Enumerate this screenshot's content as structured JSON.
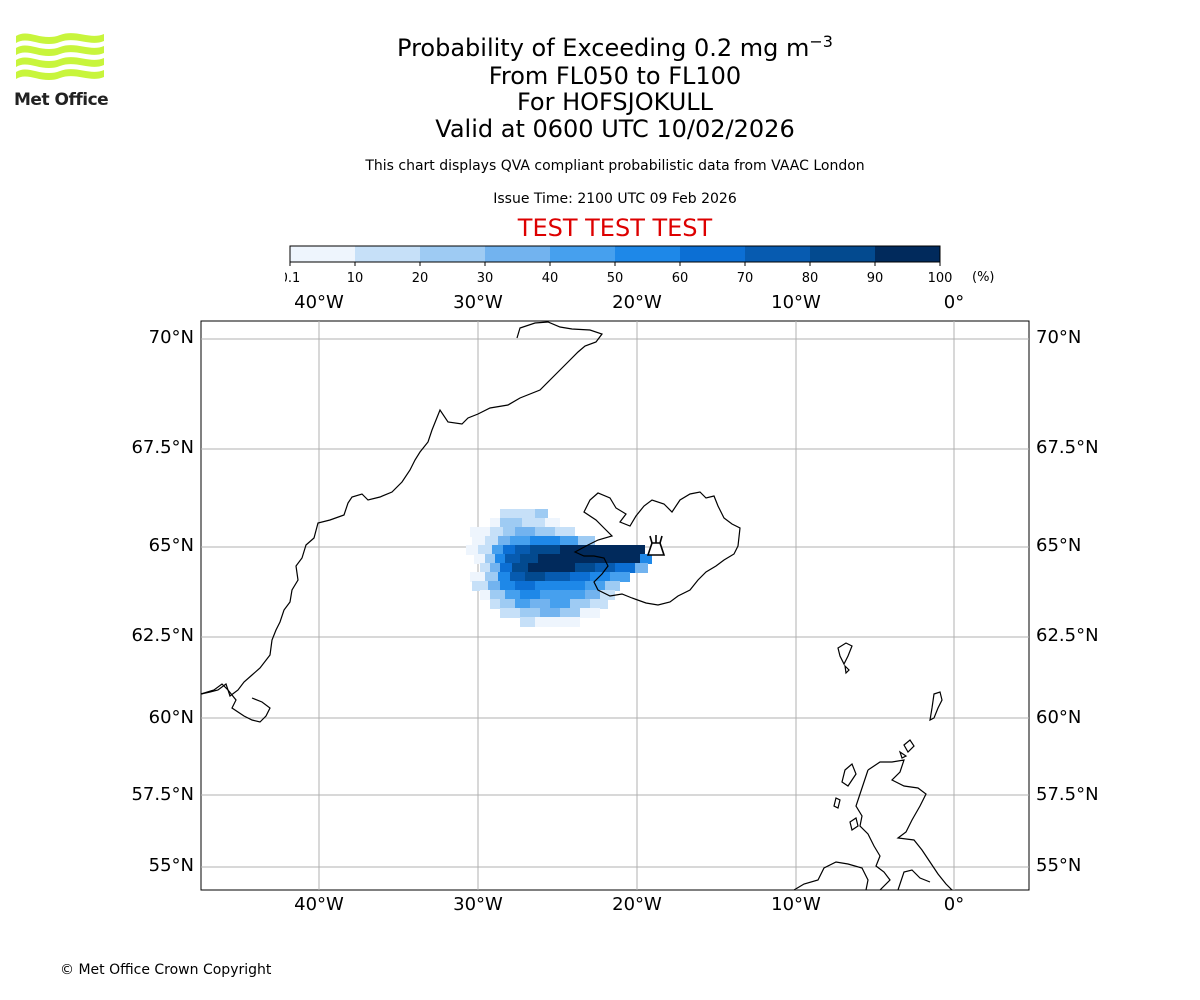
{
  "brand": {
    "logo_text": "Met Office",
    "logo_color": "#c8f53c"
  },
  "header": {
    "title_main": "Probability of Exceeding 0.2 mg m",
    "title_superscript": "−3",
    "levels": "From FL050 to FL100",
    "volcano": "For HOFSJOKULL",
    "valid": "Valid at 0600 UTC 10/02/2026",
    "description": "This chart displays QVA compliant probabilistic data from VAAC London",
    "issue_time": "Issue Time: 2100 UTC 09 Feb 2026",
    "test_banner": "TEST TEST TEST"
  },
  "colorbar": {
    "ticks": [
      "0.1",
      "10",
      "20",
      "30",
      "40",
      "50",
      "60",
      "70",
      "80",
      "90",
      "100"
    ],
    "unit": "(%)",
    "colors": [
      "#eef5fd",
      "#c6e0f8",
      "#9ecbf3",
      "#72b3ef",
      "#46a0ee",
      "#1e88e8",
      "#0c6fd4",
      "#075bb0",
      "#034a8f",
      "#012a5c"
    ]
  },
  "map": {
    "lon_labels": [
      "40°W",
      "30°W",
      "20°W",
      "10°W",
      "0°"
    ],
    "lat_labels": [
      "70°N",
      "67.5°N",
      "65°N",
      "62.5°N",
      "60°N",
      "57.5°N",
      "55°N"
    ],
    "volcano_icon": "volcano-icon"
  },
  "footer": {
    "copyright": "© Met Office Crown Copyright"
  }
}
